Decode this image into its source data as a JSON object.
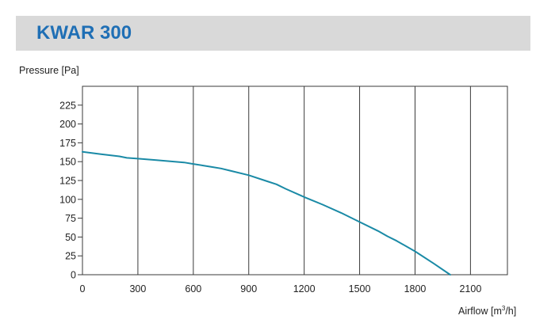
{
  "title": "KWAR 300",
  "colors": {
    "title_bar": "#d9d9d9",
    "title_text": "#1f6fb5",
    "curve": "#1a8aa6",
    "grid": "#3a3a3a"
  },
  "chart_data": {
    "type": "line",
    "title": "KWAR 300",
    "ylabel": "Pressure [Pa]",
    "xlabel_prefix": "Airflow [m",
    "xlabel_sup": "3",
    "xlabel_suffix": "/h]",
    "xlim": [
      0,
      2300
    ],
    "ylim": [
      0,
      250
    ],
    "x_ticks": [
      0,
      300,
      600,
      900,
      1200,
      1500,
      1800,
      2100
    ],
    "y_ticks": [
      0,
      25,
      50,
      75,
      100,
      125,
      150,
      175,
      200,
      225
    ],
    "grid": true,
    "series": [
      {
        "x": [
          0,
          100,
          200,
          240,
          300,
          400,
          500,
          550,
          600,
          650,
          700,
          750,
          800,
          900,
          1000,
          1050,
          1100,
          1200,
          1300,
          1400,
          1500,
          1600,
          1650,
          1700,
          1800,
          1900,
          1990
        ],
        "y": [
          163,
          160,
          157,
          155,
          154,
          152,
          150,
          149,
          147,
          145,
          143,
          141,
          138,
          132,
          124,
          120,
          114,
          103,
          93,
          82,
          70,
          58,
          51,
          45,
          31,
          15,
          0
        ]
      }
    ]
  }
}
